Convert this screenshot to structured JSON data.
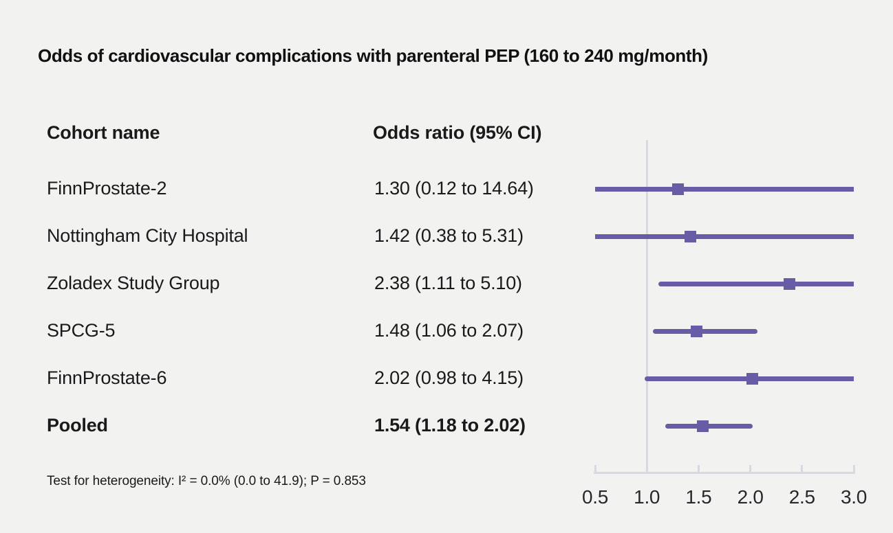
{
  "title": "Odds of cardiovascular complications with parenteral PEP (160 to 240 mg/month)",
  "table": {
    "col1_header": "Cohort name",
    "col2_header": "Odds ratio (95% CI)"
  },
  "rows": [
    {
      "label": "FinnProstate-2",
      "or_text": "1.30 (0.12 to 14.64)"
    },
    {
      "label": "Nottingham City Hospital",
      "or_text": "1.42 (0.38 to 5.31)"
    },
    {
      "label": "Zoladex Study Group",
      "or_text": "2.38 (1.11 to 5.10)"
    },
    {
      "label": "SPCG-5",
      "or_text": "1.48 (1.06 to 2.07)"
    },
    {
      "label": "FinnProstate-6",
      "or_text": "2.02 (0.98 to 4.15)"
    },
    {
      "label": "Pooled",
      "or_text": "1.54 (1.18 to 2.02)"
    }
  ],
  "footnote": "Test for heterogeneity: I² = 0.0% (0.0 to 41.9); P = 0.853",
  "colors": {
    "accent_purple": "#685CA7",
    "axis_gray": "#D5D9E0",
    "background": "#F2F2F1",
    "text": "#1A1A1A"
  },
  "chart_data": {
    "type": "scatter",
    "variant": "forest-plot",
    "title": "Odds of cardiovascular complications with parenteral PEP (160 to 240 mg/month)",
    "series": [
      {
        "name": "FinnProstate-2",
        "estimate": 1.3,
        "ci_lower": 0.12,
        "ci_upper": 14.64,
        "pooled": false
      },
      {
        "name": "Nottingham City Hospital",
        "estimate": 1.42,
        "ci_lower": 0.38,
        "ci_upper": 5.31,
        "pooled": false
      },
      {
        "name": "Zoladex Study Group",
        "estimate": 2.38,
        "ci_lower": 1.11,
        "ci_upper": 5.1,
        "pooled": false
      },
      {
        "name": "SPCG-5",
        "estimate": 1.48,
        "ci_lower": 1.06,
        "ci_upper": 2.07,
        "pooled": false
      },
      {
        "name": "FinnProstate-6",
        "estimate": 2.02,
        "ci_lower": 0.98,
        "ci_upper": 4.15,
        "pooled": false
      },
      {
        "name": "Pooled",
        "estimate": 1.54,
        "ci_lower": 1.18,
        "ci_upper": 2.02,
        "pooled": true
      }
    ],
    "xlabel": "",
    "ylabel": "",
    "xlim": [
      0.5,
      3.0
    ],
    "x_ticks": [
      0.5,
      1.0,
      1.5,
      2.0,
      2.5,
      3.0
    ],
    "x_tick_labels": [
      "0.5",
      "1.0",
      "1.5",
      "2.0",
      "2.5",
      "3.0"
    ],
    "reference_line_x": 1.0,
    "scale": "linear",
    "marker": "square",
    "grid": false,
    "legend": "none",
    "heterogeneity": {
      "i_squared_pct": 0.0,
      "i_squared_ci": [
        0.0,
        41.9
      ],
      "p_value": 0.853
    }
  }
}
